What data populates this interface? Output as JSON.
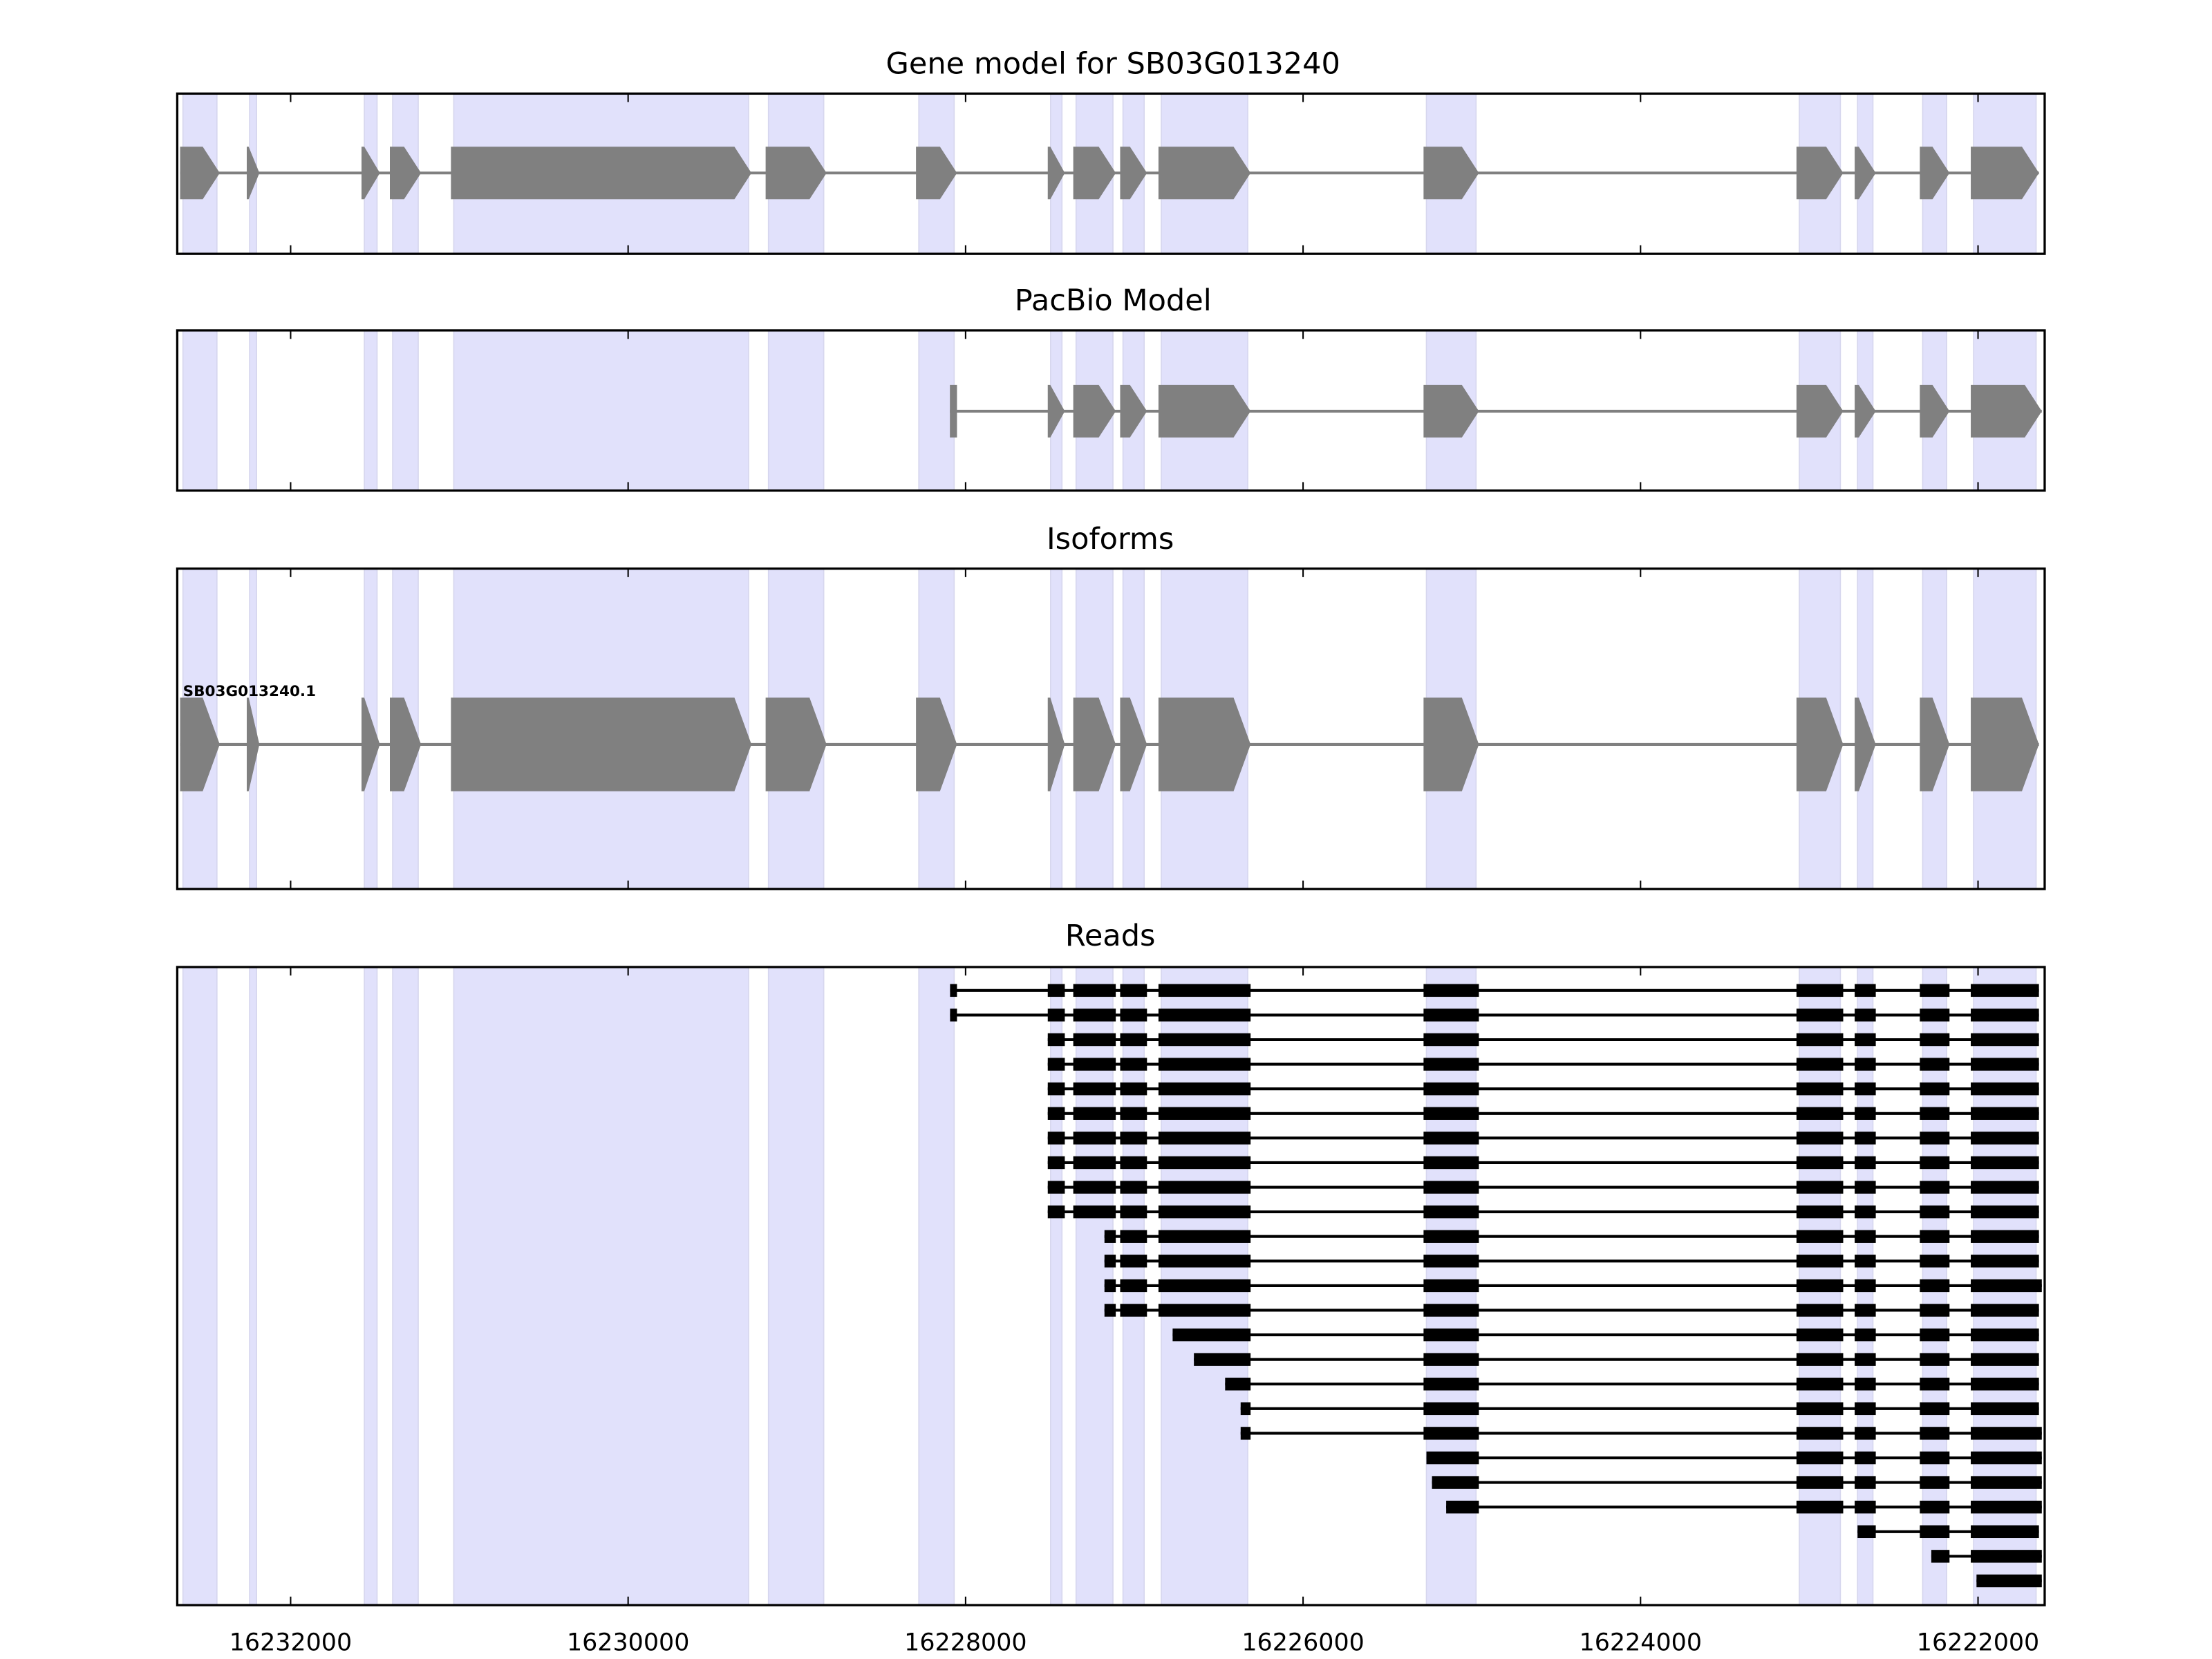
{
  "chart_data": {
    "type": "gene-track",
    "title": "Gene model for SB03G013240",
    "xlim": [
      16232672,
      16221605
    ],
    "xticks": [
      16232000,
      16230000,
      16228000,
      16226000,
      16224000,
      16222000
    ],
    "xtick_labels": [
      "16232000",
      "16230000",
      "16228000",
      "16226000",
      "16224000",
      "16222000"
    ],
    "colors": {
      "exon": "#808080",
      "shade": "#e1e1fb",
      "shade_edge": "#d6d6ee",
      "read": "#000000",
      "intron": "#808080"
    },
    "panels": [
      {
        "id": "gene-model",
        "title": "Gene model for SB03G013240"
      },
      {
        "id": "pacbio-model",
        "title": "PacBio Model"
      },
      {
        "id": "isoforms",
        "title": "Isoforms",
        "isoform_label": "SB03G013240.1"
      },
      {
        "id": "reads",
        "title": "Reads"
      }
    ],
    "gene_exons": [
      [
        16232655,
        16232420
      ],
      [
        16232260,
        16232185
      ],
      [
        16231580,
        16231471
      ],
      [
        16231412,
        16231227
      ],
      [
        16231050,
        16229269
      ],
      [
        16229185,
        16228824
      ],
      [
        16228294,
        16228051
      ],
      [
        16227513,
        16227412
      ],
      [
        16227362,
        16227110
      ],
      [
        16227084,
        16226925
      ],
      [
        16226857,
        16226311
      ],
      [
        16225286,
        16224958
      ],
      [
        16223076,
        16222799
      ],
      [
        16222731,
        16222606
      ],
      [
        16222345,
        16222169
      ],
      [
        16222043,
        16221639
      ]
    ],
    "pacbio_exons": [
      [
        16228093,
        16228051
      ],
      [
        16227513,
        16227412
      ],
      [
        16227362,
        16227110
      ],
      [
        16227084,
        16226925
      ],
      [
        16226857,
        16226311
      ],
      [
        16225286,
        16224958
      ],
      [
        16223076,
        16222799
      ],
      [
        16222731,
        16222606
      ],
      [
        16222345,
        16222169
      ],
      [
        16222043,
        16221622
      ]
    ],
    "reads": [
      [
        16228092,
        16221639
      ],
      [
        16228092,
        16221639
      ],
      [
        16227513,
        16221639
      ],
      [
        16227513,
        16221639
      ],
      [
        16227513,
        16221639
      ],
      [
        16227513,
        16221639
      ],
      [
        16227513,
        16221639
      ],
      [
        16227513,
        16221639
      ],
      [
        16227513,
        16221639
      ],
      [
        16227513,
        16221639
      ],
      [
        16227177,
        16221639
      ],
      [
        16227177,
        16221639
      ],
      [
        16227177,
        16221622
      ],
      [
        16227177,
        16221639
      ],
      [
        16226773,
        16221639
      ],
      [
        16226647,
        16221639
      ],
      [
        16226462,
        16221639
      ],
      [
        16226370,
        16221639
      ],
      [
        16226370,
        16221622
      ],
      [
        16225269,
        16221622
      ],
      [
        16225236,
        16221622
      ],
      [
        16225152,
        16221622
      ],
      [
        16222714,
        16221639
      ],
      [
        16222277,
        16221622
      ],
      [
        16222009,
        16221622
      ]
    ]
  }
}
